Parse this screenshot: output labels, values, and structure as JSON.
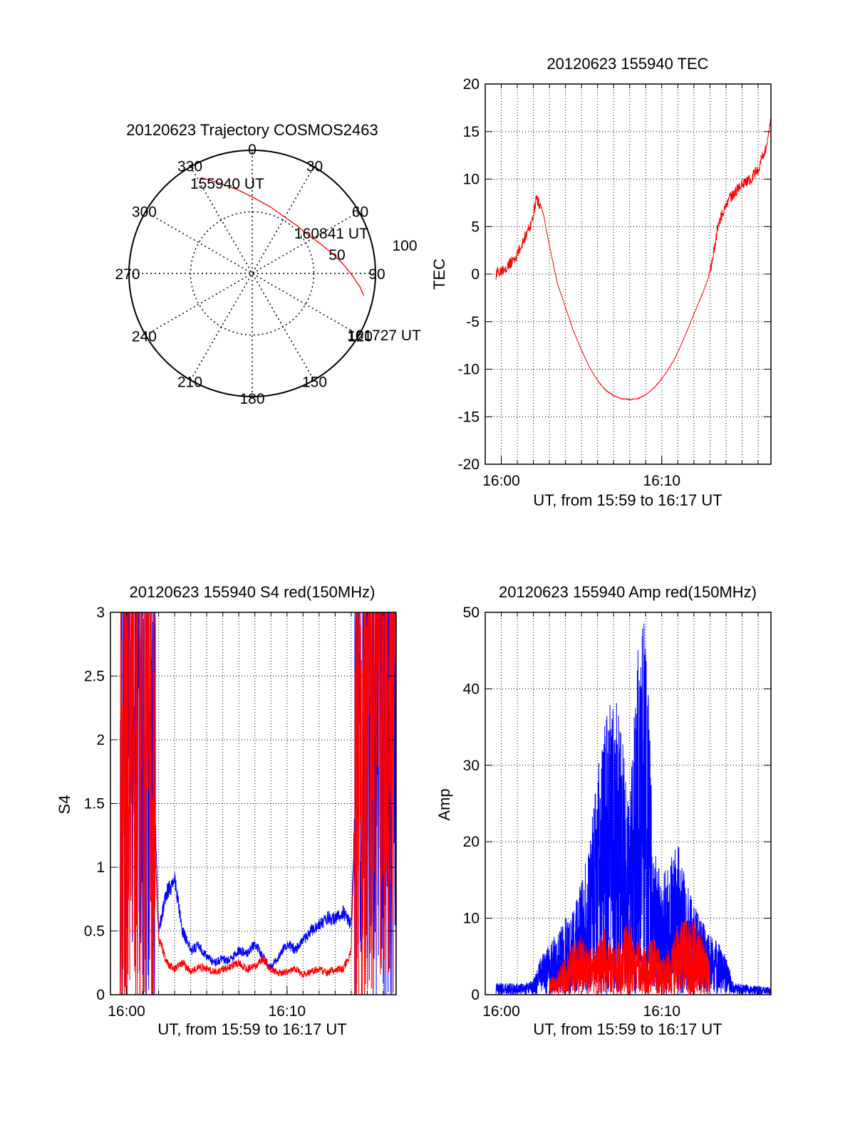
{
  "colors": {
    "red": "#ff0000",
    "blue": "#0000ff",
    "axis": "#000000",
    "grid": "#000000"
  },
  "chart_data": [
    {
      "id": "trajectory",
      "type": "polar",
      "title": "20120623 Trajectory COSMOS2463",
      "azimuth_labels": [
        "0",
        "30",
        "60",
        "90",
        "120",
        "150",
        "180",
        "210",
        "240",
        "270",
        "300",
        "330"
      ],
      "radial_labels": [
        "50",
        "100"
      ],
      "radius_max": 100,
      "series": [
        {
          "color": "red",
          "points": [
            {
              "az": 332,
              "zen": 88
            },
            {
              "az": 340,
              "zen": 78
            },
            {
              "az": 350,
              "zen": 69
            },
            {
              "az": 2,
              "zen": 61
            },
            {
              "az": 15,
              "zen": 56
            },
            {
              "az": 28,
              "zen": 53
            },
            {
              "az": 42,
              "zen": 53
            },
            {
              "az": 55,
              "zen": 55
            },
            {
              "az": 66,
              "zen": 60
            },
            {
              "az": 76,
              "zen": 67
            },
            {
              "az": 84,
              "zen": 74
            },
            {
              "az": 91,
              "zen": 81
            },
            {
              "az": 97,
              "zen": 88
            },
            {
              "az": 101,
              "zen": 92
            }
          ]
        }
      ],
      "annotations": [
        {
          "text": "155940 UT",
          "az": 332,
          "zen": 88
        },
        {
          "text": "160841 UT",
          "az": 55,
          "zen": 55
        },
        {
          "text": "161727 UT",
          "az": 101,
          "zen": 92
        }
      ]
    },
    {
      "id": "tec",
      "type": "line",
      "title": "20120623 155940 TEC",
      "xlabel": "UT, from 15:59 to 16:17 UT",
      "ylabel": "TEC",
      "xlim": [
        0,
        17.8
      ],
      "ylim": [
        -20,
        20
      ],
      "x_ticks": [
        {
          "value": 1,
          "label": "16:00"
        },
        {
          "value": 11,
          "label": "16:10"
        }
      ],
      "y_ticks": [
        -20,
        -15,
        -10,
        -5,
        0,
        5,
        10,
        15,
        20
      ],
      "series": [
        {
          "color": "red",
          "x": [
            0.67,
            1.0,
            1.5,
            2.0,
            2.5,
            2.9,
            3.2,
            3.6,
            4.0,
            4.5,
            5.0,
            5.5,
            6.0,
            6.5,
            7.0,
            7.5,
            8.0,
            8.5,
            9.0,
            9.5,
            10.0,
            10.5,
            11.0,
            11.5,
            12.0,
            12.5,
            13.0,
            13.5,
            14.0,
            14.5,
            15.0,
            15.5,
            16.0,
            16.5,
            17.0,
            17.5,
            17.8
          ],
          "y": [
            0.0,
            0.5,
            1.0,
            2.0,
            4.0,
            5.5,
            8.0,
            6.5,
            3.0,
            -1.0,
            -3.5,
            -6.0,
            -8.0,
            -9.8,
            -11.2,
            -12.2,
            -12.8,
            -13.1,
            -13.2,
            -13.1,
            -12.7,
            -12.0,
            -11.0,
            -9.8,
            -8.2,
            -6.3,
            -4.2,
            -2.2,
            0.0,
            5.0,
            7.5,
            8.5,
            9.5,
            10.0,
            11.0,
            13.5,
            16.0
          ]
        }
      ]
    },
    {
      "id": "s4",
      "type": "line",
      "title": "20120623 155940 S4 red(150MHz)",
      "xlabel": "UT, from 15:59 to 16:17 UT",
      "ylabel": "S4",
      "xlim": [
        0,
        17.8
      ],
      "ylim": [
        0,
        3
      ],
      "x_ticks": [
        {
          "value": 1,
          "label": "16:00"
        },
        {
          "value": 11,
          "label": "16:10"
        }
      ],
      "y_ticks": [
        {
          "value": 0,
          "label": "0"
        },
        {
          "value": 0.5,
          "label": "0.5"
        },
        {
          "value": 1,
          "label": "1"
        },
        {
          "value": 1.5,
          "label": "1.5"
        },
        {
          "value": 2,
          "label": "2"
        },
        {
          "value": 2.5,
          "label": "2.5"
        },
        {
          "value": 3,
          "label": "3"
        }
      ],
      "series": [
        {
          "color": "blue",
          "x": [
            0.6,
            1.0,
            1.5,
            2.0,
            2.5,
            2.7,
            3.0,
            3.5,
            4.0,
            4.5,
            5.0,
            5.5,
            6.0,
            6.5,
            7.0,
            7.5,
            8.0,
            8.5,
            9.0,
            9.5,
            10.0,
            10.5,
            11.0,
            11.5,
            12.0,
            12.5,
            13.0,
            13.5,
            14.0,
            14.5,
            15.0,
            15.5,
            16.0,
            16.5,
            17.0,
            17.5,
            17.8
          ],
          "y": [
            2.3,
            2.5,
            2.3,
            2.4,
            2.6,
            1.8,
            0.5,
            0.8,
            0.9,
            0.5,
            0.35,
            0.38,
            0.3,
            0.25,
            0.28,
            0.27,
            0.35,
            0.32,
            0.4,
            0.3,
            0.22,
            0.3,
            0.4,
            0.35,
            0.42,
            0.5,
            0.55,
            0.6,
            0.6,
            0.65,
            0.55,
            2.5,
            2.7,
            2.5,
            2.4,
            2.3,
            1.6
          ]
        },
        {
          "color": "red",
          "x": [
            0.6,
            1.0,
            1.5,
            2.0,
            2.5,
            2.7,
            3.0,
            3.5,
            4.0,
            4.5,
            5.0,
            5.5,
            6.0,
            6.5,
            7.0,
            7.5,
            8.0,
            8.5,
            9.0,
            9.5,
            10.0,
            10.5,
            11.0,
            11.5,
            12.0,
            12.5,
            13.0,
            13.5,
            14.0,
            14.5,
            15.0,
            15.2,
            15.5,
            16.0,
            16.5,
            17.0,
            17.5,
            17.8
          ],
          "y": [
            1.8,
            2.3,
            1.9,
            2.2,
            2.4,
            1.4,
            0.45,
            0.25,
            0.2,
            0.25,
            0.18,
            0.22,
            0.2,
            0.18,
            0.2,
            0.22,
            0.25,
            0.2,
            0.22,
            0.28,
            0.2,
            0.17,
            0.18,
            0.2,
            0.16,
            0.18,
            0.2,
            0.17,
            0.2,
            0.2,
            0.35,
            1.2,
            2.2,
            2.5,
            2.6,
            2.6,
            2.4,
            2.4
          ]
        }
      ]
    },
    {
      "id": "amp",
      "type": "line",
      "title": "20120623 155940 Amp red(150MHz)",
      "xlabel": "UT, from 15:59 to 16:17 UT",
      "ylabel": "Amp",
      "xlim": [
        0,
        17.8
      ],
      "ylim": [
        0,
        50
      ],
      "x_ticks": [
        {
          "value": 1,
          "label": "16:00"
        },
        {
          "value": 11,
          "label": "16:10"
        }
      ],
      "y_ticks": [
        0,
        10,
        20,
        30,
        40,
        50
      ],
      "series": [
        {
          "color": "blue",
          "x": [
            0.67,
            1.5,
            2.5,
            3.0,
            3.5,
            4.0,
            4.5,
            5.0,
            5.5,
            6.0,
            6.5,
            7.0,
            7.5,
            8.0,
            8.5,
            9.0,
            9.5,
            10.0,
            10.5,
            11.0,
            11.5,
            12.0,
            12.5,
            13.0,
            13.5,
            14.0,
            14.5,
            15.0,
            15.5,
            16.0,
            16.5,
            17.0,
            17.5,
            17.8
          ],
          "y": [
            1.5,
            1.5,
            1.5,
            2.0,
            5.0,
            7.0,
            8.0,
            10.0,
            11.0,
            15.0,
            20.0,
            30.0,
            36.0,
            40.0,
            35.0,
            25.0,
            45.0,
            50.0,
            20.0,
            15.0,
            18.0,
            20.0,
            15.0,
            12.0,
            10.0,
            8.0,
            7.0,
            5.0,
            1.5,
            1.5,
            1.2,
            1.2,
            1.0,
            1.0
          ]
        },
        {
          "color": "red",
          "x": [
            4.0,
            4.5,
            5.0,
            5.5,
            6.0,
            6.5,
            7.0,
            7.5,
            8.0,
            8.5,
            9.0,
            9.5,
            10.0,
            10.5,
            11.0,
            11.5,
            12.0,
            12.5,
            13.0,
            13.5,
            14.0
          ],
          "y": [
            2.0,
            3.0,
            5.0,
            7.0,
            8.0,
            6.0,
            7.0,
            9.0,
            6.0,
            8.0,
            10.0,
            7.0,
            6.0,
            8.0,
            5.0,
            6.0,
            9.0,
            10.0,
            10.0,
            8.0,
            4.0
          ]
        }
      ]
    }
  ]
}
